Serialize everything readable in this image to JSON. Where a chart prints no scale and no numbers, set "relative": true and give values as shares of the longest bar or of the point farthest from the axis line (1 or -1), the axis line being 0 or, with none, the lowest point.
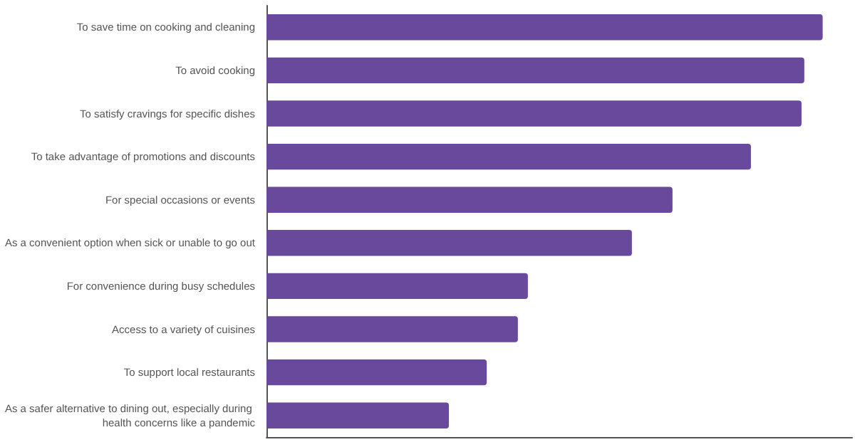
{
  "chart_data": {
    "type": "bar",
    "orientation": "horizontal",
    "relative": true,
    "color": "#68499b",
    "categories": [
      "To save time on cooking and cleaning",
      "To avoid cooking",
      "To satisfy cravings for specific dishes",
      "To take advantage of promotions and discounts",
      "For special occasions or events",
      "As a convenient option when sick or unable to go out",
      "For convenience during busy schedules",
      "Access to a variety of cuisines",
      "To support local restaurants",
      "As a safer alternative to dining out, especially during health concerns like a pandemic"
    ],
    "values": [
      1,
      0.967,
      0.962,
      0.871,
      0.73,
      0.657,
      0.47,
      0.452,
      0.396,
      0.328
    ]
  }
}
